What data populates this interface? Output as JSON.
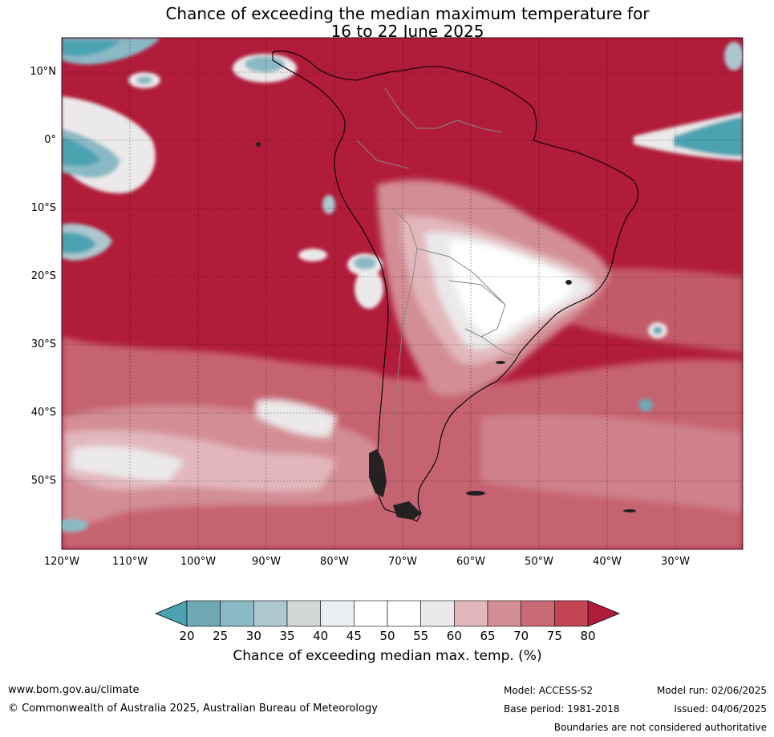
{
  "title": {
    "line1": "Chance of exceeding the median maximum temperature for",
    "line2": "16 to 22 June 2025"
  },
  "axes": {
    "lat_labels": [
      "10°N",
      "0°",
      "10°S",
      "20°S",
      "30°S",
      "40°S",
      "50°S"
    ],
    "lon_labels": [
      "120°W",
      "110°W",
      "100°W",
      "90°W",
      "80°W",
      "70°W",
      "60°W",
      "50°W",
      "40°W",
      "30°W"
    ]
  },
  "colorbar": {
    "ticks": [
      "20",
      "25",
      "30",
      "35",
      "40",
      "45",
      "50",
      "55",
      "60",
      "65",
      "70",
      "75",
      "80"
    ],
    "colors": [
      "#6fa9b4",
      "#8ab9c5",
      "#acc7cd",
      "#d3d7d8",
      "#e9eef1",
      "#ffffff",
      "#ffffff",
      "#ebe9ea",
      "#e2b7bc",
      "#d38d95",
      "#c96b77",
      "#c34554"
    ],
    "low_color": "#4ba3b2",
    "high_color": "#b11c3a",
    "label": "Chance of exceeding median max. temp. (%)"
  },
  "footer": {
    "url": "www.bom.gov.au/climate",
    "copyright": "© Commonwealth of Australia 2025, Australian Bureau of Meteorology",
    "model": "Model: ACCESS-S2",
    "base_period": "Base period: 1981-2018",
    "model_run": "Model run: 02/06/2025",
    "issued": "Issued: 04/06/2025",
    "disclaimer": "Boundaries are not considered authoritative"
  }
}
